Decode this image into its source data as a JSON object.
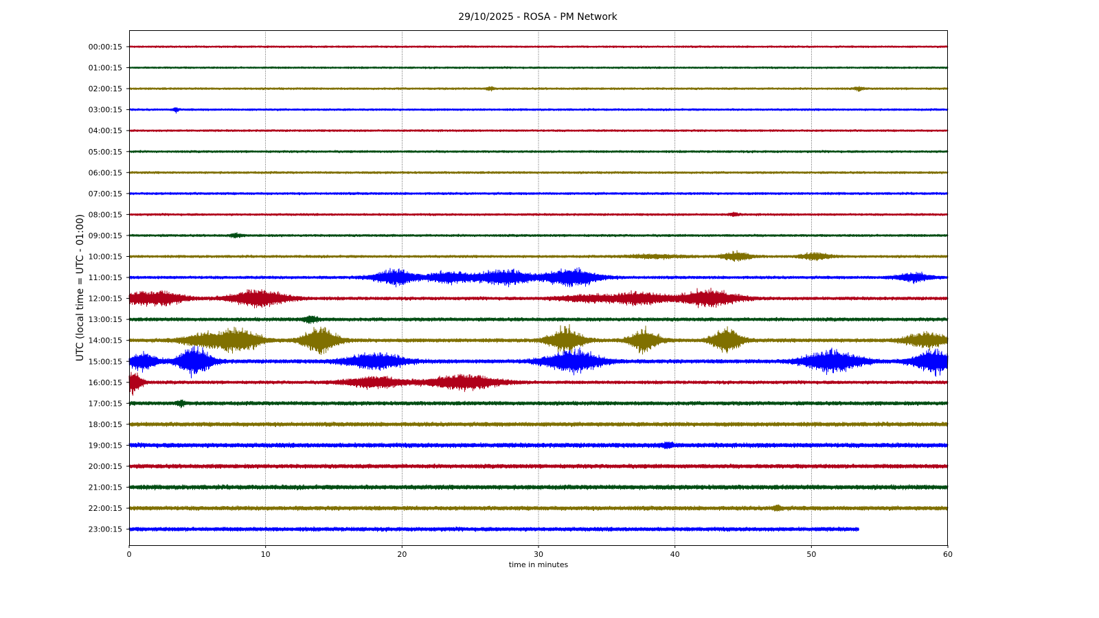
{
  "chart_data": {
    "type": "line",
    "title": "29/10/2025 - ROSA - PM Network",
    "xlabel": "time in minutes",
    "ylabel": "UTC (local time = UTC - 01:00)",
    "xlim": [
      0,
      60
    ],
    "xticks": [
      0,
      10,
      20,
      30,
      40,
      50,
      60
    ],
    "grid": "vertical dotted at x ticks",
    "colors": [
      "#b0001a",
      "#004d13",
      "#807000",
      "#0000ff"
    ],
    "rows": [
      {
        "label": "00:00:15",
        "color": "#b0001a",
        "end": 60,
        "amp": 1.2,
        "bursts": []
      },
      {
        "label": "01:00:15",
        "color": "#004d13",
        "end": 60,
        "amp": 1.2,
        "bursts": []
      },
      {
        "label": "02:00:15",
        "color": "#807000",
        "end": 60,
        "amp": 1.3,
        "bursts": [
          [
            26.5,
            0.3,
            2
          ],
          [
            53.5,
            0.3,
            2
          ]
        ]
      },
      {
        "label": "03:00:15",
        "color": "#0000ff",
        "end": 60,
        "amp": 1.3,
        "bursts": [
          [
            3.4,
            0.2,
            2.5
          ]
        ]
      },
      {
        "label": "04:00:15",
        "color": "#b0001a",
        "end": 60,
        "amp": 1.3,
        "bursts": []
      },
      {
        "label": "05:00:15",
        "color": "#004d13",
        "end": 60,
        "amp": 1.4,
        "bursts": []
      },
      {
        "label": "06:00:15",
        "color": "#807000",
        "end": 60,
        "amp": 1.4,
        "bursts": []
      },
      {
        "label": "07:00:15",
        "color": "#0000ff",
        "end": 60,
        "amp": 1.5,
        "bursts": []
      },
      {
        "label": "08:00:15",
        "color": "#b0001a",
        "end": 60,
        "amp": 1.4,
        "bursts": [
          [
            44.3,
            0.3,
            2
          ]
        ]
      },
      {
        "label": "09:00:15",
        "color": "#004d13",
        "end": 60,
        "amp": 1.5,
        "bursts": [
          [
            7.8,
            0.4,
            2
          ]
        ]
      },
      {
        "label": "10:00:15",
        "color": "#807000",
        "end": 60,
        "amp": 1.6,
        "bursts": [
          [
            38.5,
            2.0,
            2
          ],
          [
            44.5,
            1.0,
            5
          ],
          [
            50.3,
            1.0,
            4
          ]
        ]
      },
      {
        "label": "11:00:15",
        "color": "#0000ff",
        "end": 60,
        "amp": 1.8,
        "bursts": [
          [
            19.5,
            1.5,
            9
          ],
          [
            23.5,
            1.5,
            7
          ],
          [
            27.5,
            2.0,
            9
          ],
          [
            32.5,
            1.8,
            11
          ],
          [
            57.5,
            1.2,
            5
          ]
        ]
      },
      {
        "label": "12:00:15",
        "color": "#b0001a",
        "end": 60,
        "amp": 2.0,
        "bursts": [
          [
            0.5,
            1.0,
            6
          ],
          [
            2.5,
            1.5,
            8
          ],
          [
            9.5,
            2.0,
            10
          ],
          [
            33.5,
            2.0,
            4
          ],
          [
            37.5,
            2.0,
            7
          ],
          [
            42.5,
            2.0,
            10
          ]
        ]
      },
      {
        "label": "13:00:15",
        "color": "#004d13",
        "end": 60,
        "amp": 2.2,
        "bursts": [
          [
            13.3,
            0.5,
            4
          ]
        ]
      },
      {
        "label": "14:00:15",
        "color": "#807000",
        "end": 60,
        "amp": 2.3,
        "bursts": [
          [
            5.5,
            1.5,
            8
          ],
          [
            8.0,
            1.5,
            14
          ],
          [
            14.0,
            1.2,
            16
          ],
          [
            32.0,
            1.2,
            14
          ],
          [
            37.8,
            1.0,
            13
          ],
          [
            43.8,
            1.0,
            16
          ],
          [
            58.5,
            1.5,
            9
          ]
        ]
      },
      {
        "label": "15:00:15",
        "color": "#0000ff",
        "end": 60,
        "amp": 2.4,
        "bursts": [
          [
            1.0,
            1.0,
            10
          ],
          [
            4.8,
            1.2,
            16
          ],
          [
            18.0,
            2.0,
            10
          ],
          [
            32.5,
            2.0,
            13
          ],
          [
            51.5,
            2.0,
            13
          ],
          [
            59.0,
            1.5,
            14
          ]
        ]
      },
      {
        "label": "16:00:15",
        "color": "#b0001a",
        "end": 60,
        "amp": 2.0,
        "bursts": [
          [
            0.3,
            0.6,
            14
          ],
          [
            18.0,
            2.0,
            7
          ],
          [
            24.5,
            2.5,
            9
          ]
        ]
      },
      {
        "label": "17:00:15",
        "color": "#004d13",
        "end": 60,
        "amp": 2.4,
        "bursts": [
          [
            3.8,
            0.3,
            3
          ]
        ]
      },
      {
        "label": "18:00:15",
        "color": "#807000",
        "end": 60,
        "amp": 2.6,
        "bursts": []
      },
      {
        "label": "19:00:15",
        "color": "#0000ff",
        "end": 60,
        "amp": 2.8,
        "bursts": [
          [
            39.5,
            0.4,
            3
          ]
        ]
      },
      {
        "label": "20:00:15",
        "color": "#b0001a",
        "end": 60,
        "amp": 2.6,
        "bursts": []
      },
      {
        "label": "21:00:15",
        "color": "#004d13",
        "end": 60,
        "amp": 2.8,
        "bursts": []
      },
      {
        "label": "22:00:15",
        "color": "#807000",
        "end": 60,
        "amp": 2.6,
        "bursts": [
          [
            47.5,
            0.3,
            3
          ]
        ]
      },
      {
        "label": "23:00:15",
        "color": "#0000ff",
        "end": 53.5,
        "amp": 2.5,
        "bursts": []
      }
    ]
  }
}
